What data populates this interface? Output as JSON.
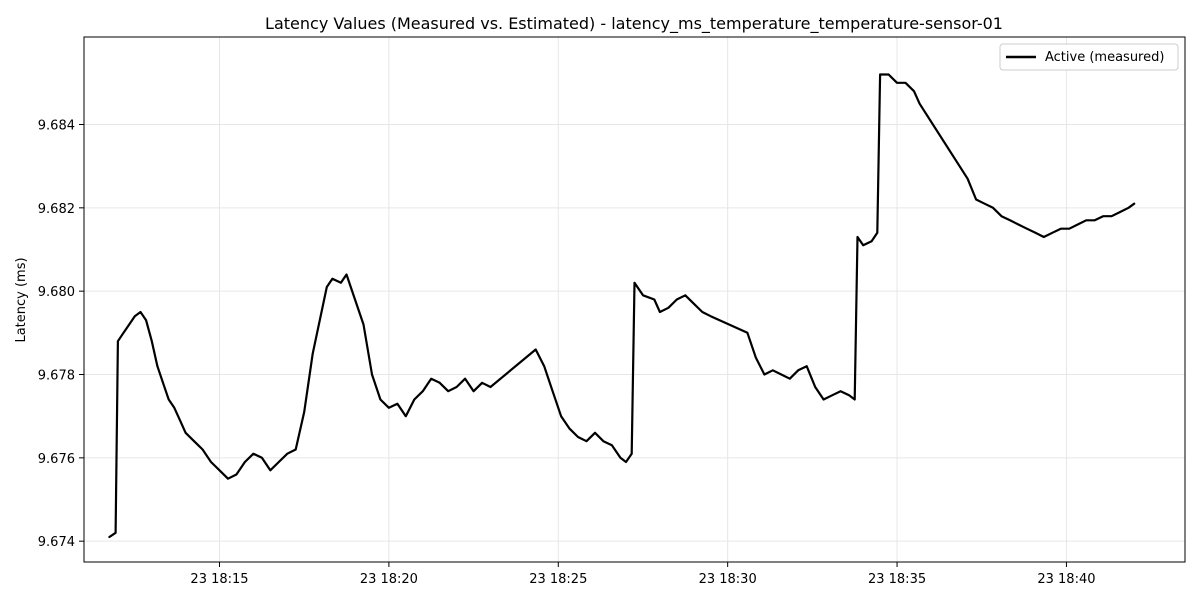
{
  "chart_data": {
    "type": "line",
    "title": "Latency Values (Measured vs. Estimated) - latency_ms_temperature_temperature-sensor-01",
    "xlabel": "",
    "ylabel": "Latency (ms)",
    "grid": true,
    "legend_placement": "top-right",
    "xlim": [
      "23 18:11:00",
      "23 18:43:30"
    ],
    "ylim": [
      9.6735,
      9.6861
    ],
    "x_ticks": [
      {
        "value": "23 18:15:00",
        "label": "23 18:15"
      },
      {
        "value": "23 18:20:00",
        "label": "23 18:20"
      },
      {
        "value": "23 18:25:00",
        "label": "23 18:25"
      },
      {
        "value": "23 18:30:00",
        "label": "23 18:30"
      },
      {
        "value": "23 18:35:00",
        "label": "23 18:35"
      },
      {
        "value": "23 18:40:00",
        "label": "23 18:40"
      }
    ],
    "y_ticks": [
      {
        "value": 9.674,
        "label": "9.674"
      },
      {
        "value": 9.676,
        "label": "9.676"
      },
      {
        "value": 9.678,
        "label": "9.678"
      },
      {
        "value": 9.68,
        "label": "9.680"
      },
      {
        "value": 9.682,
        "label": "9.682"
      },
      {
        "value": 9.684,
        "label": "9.684"
      }
    ],
    "series": [
      {
        "name": "Active (measured)",
        "color": "#000000",
        "x": [
          "23 18:11:45",
          "23 18:11:56",
          "23 18:12:00",
          "23 18:12:10",
          "23 18:12:20",
          "23 18:12:30",
          "23 18:12:40",
          "23 18:12:50",
          "23 18:13:00",
          "23 18:13:10",
          "23 18:13:20",
          "23 18:13:30",
          "23 18:13:40",
          "23 18:13:50",
          "23 18:14:00",
          "23 18:14:15",
          "23 18:14:30",
          "23 18:14:45",
          "23 18:15:00",
          "23 18:15:15",
          "23 18:15:30",
          "23 18:15:45",
          "23 18:16:00",
          "23 18:16:15",
          "23 18:16:30",
          "23 18:16:45",
          "23 18:17:00",
          "23 18:17:15",
          "23 18:17:30",
          "23 18:17:45",
          "23 18:18:10",
          "23 18:18:20",
          "23 18:18:35",
          "23 18:18:45",
          "23 18:19:00",
          "23 18:19:15",
          "23 18:19:30",
          "23 18:19:45",
          "23 18:20:00",
          "23 18:20:15",
          "23 18:20:30",
          "23 18:20:45",
          "23 18:21:00",
          "23 18:21:15",
          "23 18:21:30",
          "23 18:21:45",
          "23 18:22:00",
          "23 18:22:15",
          "23 18:22:30",
          "23 18:22:45",
          "23 18:23:00",
          "23 18:24:20",
          "23 18:24:35",
          "23 18:24:50",
          "23 18:25:05",
          "23 18:25:20",
          "23 18:25:35",
          "23 18:25:50",
          "23 18:26:05",
          "23 18:26:20",
          "23 18:26:35",
          "23 18:26:50",
          "23 18:27:00",
          "23 18:27:10",
          "23 18:27:15",
          "23 18:27:30",
          "23 18:27:50",
          "23 18:28:00",
          "23 18:28:15",
          "23 18:28:30",
          "23 18:28:45",
          "23 18:29:00",
          "23 18:29:15",
          "23 18:29:30",
          "23 18:30:35",
          "23 18:30:50",
          "23 18:31:05",
          "23 18:31:20",
          "23 18:31:35",
          "23 18:31:50",
          "23 18:32:05",
          "23 18:32:20",
          "23 18:32:35",
          "23 18:32:50",
          "23 18:33:05",
          "23 18:33:20",
          "23 18:33:35",
          "23 18:33:45",
          "23 18:33:50",
          "23 18:34:00",
          "23 18:34:15",
          "23 18:34:25",
          "23 18:34:30",
          "23 18:34:45",
          "23 18:35:00",
          "23 18:35:15",
          "23 18:35:30",
          "23 18:35:40",
          "23 18:37:05",
          "23 18:37:20",
          "23 18:37:35",
          "23 18:37:50",
          "23 18:38:05",
          "23 18:38:20",
          "23 18:38:35",
          "23 18:38:50",
          "23 18:39:05",
          "23 18:39:20",
          "23 18:39:35",
          "23 18:39:50",
          "23 18:40:05",
          "23 18:40:20",
          "23 18:40:35",
          "23 18:40:50",
          "23 18:41:05",
          "23 18:41:20",
          "23 18:41:35",
          "23 18:41:50",
          "23 18:42:00"
        ],
        "values": [
          9.6741,
          9.6742,
          9.6788,
          9.679,
          9.6792,
          9.6794,
          9.6795,
          9.6793,
          9.6788,
          9.6782,
          9.6778,
          9.6774,
          9.6772,
          9.6769,
          9.6766,
          9.6764,
          9.6762,
          9.6759,
          9.6757,
          9.6755,
          9.6756,
          9.6759,
          9.6761,
          9.676,
          9.6757,
          9.6759,
          9.6761,
          9.6762,
          9.6771,
          9.6785,
          9.6801,
          9.6803,
          9.6802,
          9.6804,
          9.6798,
          9.6792,
          9.678,
          9.6774,
          9.6772,
          9.6773,
          9.677,
          9.6774,
          9.6776,
          9.6779,
          9.6778,
          9.6776,
          9.6777,
          9.6779,
          9.6776,
          9.6778,
          9.6777,
          9.6786,
          9.6782,
          9.6776,
          9.677,
          9.6767,
          9.6765,
          9.6764,
          9.6766,
          9.6764,
          9.6763,
          9.676,
          9.6759,
          9.6761,
          9.6802,
          9.6799,
          9.6798,
          9.6795,
          9.6796,
          9.6798,
          9.6799,
          9.6797,
          9.6795,
          9.6794,
          9.679,
          9.6784,
          9.678,
          9.6781,
          9.678,
          9.6779,
          9.6781,
          9.6782,
          9.6777,
          9.6774,
          9.6775,
          9.6776,
          9.6775,
          9.6774,
          9.6813,
          9.6811,
          9.6812,
          9.6814,
          9.6852,
          9.6852,
          9.685,
          9.685,
          9.6848,
          9.6845,
          9.6827,
          9.6822,
          9.6821,
          9.682,
          9.6818,
          9.6817,
          9.6816,
          9.6815,
          9.6814,
          9.6813,
          9.6814,
          9.6815,
          9.6815,
          9.6816,
          9.6817,
          9.6817,
          9.6818,
          9.6818,
          9.6819,
          9.682,
          9.6821
        ]
      }
    ]
  }
}
